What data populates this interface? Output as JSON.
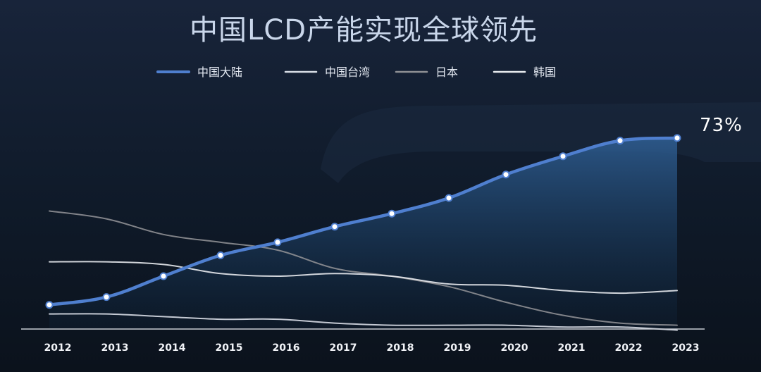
{
  "chart_data": {
    "type": "line",
    "title": "中国LCD产能实现全球领先",
    "x": [
      "2012",
      "2013",
      "2014",
      "2015",
      "2016",
      "2017",
      "2018",
      "2019",
      "2020",
      "2021",
      "2022",
      "2023"
    ],
    "ylim": [
      0,
      80
    ],
    "grid": false,
    "legend_position": "top",
    "end_label": "73%",
    "colors": {
      "background": "#0d1622",
      "mainland": "#4f7fcf",
      "taiwan": "#d8dde6",
      "japan": "#8e8f94",
      "korea": "#e8eaee",
      "axis": "#c8ccd4"
    },
    "series": [
      {
        "name": "中国大陆",
        "key": "mainland",
        "values": [
          9,
          12,
          20,
          28,
          33,
          39,
          44,
          50,
          59,
          66,
          72,
          73
        ],
        "markers": true
      },
      {
        "name": "中国台湾",
        "key": "taiwan",
        "values": [
          5.5,
          5.5,
          4.5,
          3.5,
          3.5,
          2,
          1.2,
          1.2,
          1.2,
          0.5,
          0.5,
          -0.7
        ]
      },
      {
        "name": "日本",
        "key": "japan",
        "values": [
          45,
          42,
          36,
          33,
          30,
          23,
          20,
          16,
          10,
          5,
          2,
          1.2
        ]
      },
      {
        "name": "韩国",
        "key": "korea",
        "values": [
          25.5,
          25.5,
          24.5,
          21,
          20,
          21,
          20,
          17,
          16.5,
          14.5,
          13.5,
          14.5
        ]
      }
    ]
  }
}
